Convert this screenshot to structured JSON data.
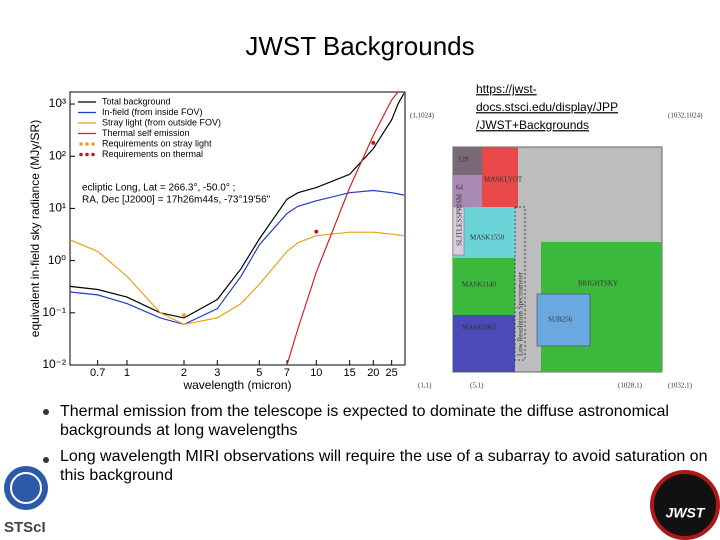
{
  "title": "JWST Backgrounds",
  "link": [
    "https://jwst-",
    "docs.stsci.edu/display/JPP",
    "/JWST+Backgrounds"
  ],
  "bullets": [
    "Thermal emission from the telescope is expected to dominate the diffuse astronomical backgrounds at long wavelengths",
    "Long wavelength MIRI observations will require the use of a subarray to avoid saturation on this background"
  ],
  "logos": [
    "STScI",
    "JWST"
  ],
  "diagram": {
    "corners": [
      "(1,1024)",
      "(1032,1024)",
      "(1,1)",
      "(5,1)",
      "(1028,1)",
      "(1032,1)"
    ],
    "regions": [
      "128",
      "64",
      "MASKLYOT",
      "SLITLESSPRISM",
      "MASK1550",
      "MASK1140",
      "MASK1065",
      "BRIGHTSKY",
      "SUB256",
      "Low Resolution Spectrometer"
    ]
  },
  "chart_data": {
    "type": "line",
    "log_x": true,
    "log_y": true,
    "xlabel": "wavelength (micron)",
    "ylabel": "equivalent in-field sky radiance (MJy/SR)",
    "annotation": [
      "ecliptic  Long,  Lat = 266.3°,  -50.0° ;",
      "RA,  Dec  [J2000] = 17h26m44s,  -73°19'56\""
    ],
    "xlim": [
      0.5,
      29.4
    ],
    "ylim": [
      0.01,
      1700
    ],
    "xticks": [
      0.7,
      1,
      2,
      3,
      5,
      7,
      10,
      15,
      20,
      25
    ],
    "yticks": [
      {
        "value": 1000,
        "label": "10³"
      },
      {
        "value": 100,
        "label": "10²"
      },
      {
        "value": 10,
        "label": "10¹"
      },
      {
        "value": 1,
        "label": "10⁰"
      },
      {
        "value": 0.1,
        "label": "10⁻¹"
      },
      {
        "value": 0.01,
        "label": "10⁻²"
      }
    ],
    "x": [
      0.5,
      0.7,
      1,
      1.5,
      2,
      3,
      4,
      5,
      7,
      8,
      10,
      15,
      20,
      25,
      27,
      29
    ],
    "series": [
      {
        "name": "Total background",
        "color": "#000000",
        "values": [
          0.32,
          0.28,
          0.2,
          0.1,
          0.08,
          0.18,
          0.7,
          2.6,
          15,
          20,
          25,
          45,
          140,
          500,
          1000,
          1600
        ]
      },
      {
        "name": "In-field (from inside FOV)",
        "color": "#1f3fbf",
        "values": [
          0.25,
          0.22,
          0.15,
          0.08,
          0.06,
          0.12,
          0.5,
          2,
          8,
          11,
          14,
          20,
          22,
          20,
          19,
          18
        ]
      },
      {
        "name": "Stray light (from outside FOV)",
        "color": "#e8a317",
        "values": [
          2.5,
          1.5,
          0.5,
          0.1,
          0.06,
          0.08,
          0.15,
          0.35,
          1.5,
          2.2,
          3,
          3.5,
          3.5,
          3.2,
          3.1,
          3
        ]
      },
      {
        "name": "Thermal self emission",
        "color": "#d62020",
        "values": [
          null,
          null,
          null,
          null,
          null,
          null,
          null,
          null,
          0.01,
          0.05,
          0.6,
          25,
          250,
          1200,
          1700,
          null
        ]
      }
    ],
    "requirements": [
      {
        "name": "Requirements on stray light",
        "color": "#e8a317",
        "x": [
          2
        ],
        "values": [
          0.09
        ]
      },
      {
        "name": "Requirements on thermal",
        "color": "#c01818",
        "x": [
          10,
          20
        ],
        "values": [
          3.6,
          180
        ]
      }
    ]
  }
}
